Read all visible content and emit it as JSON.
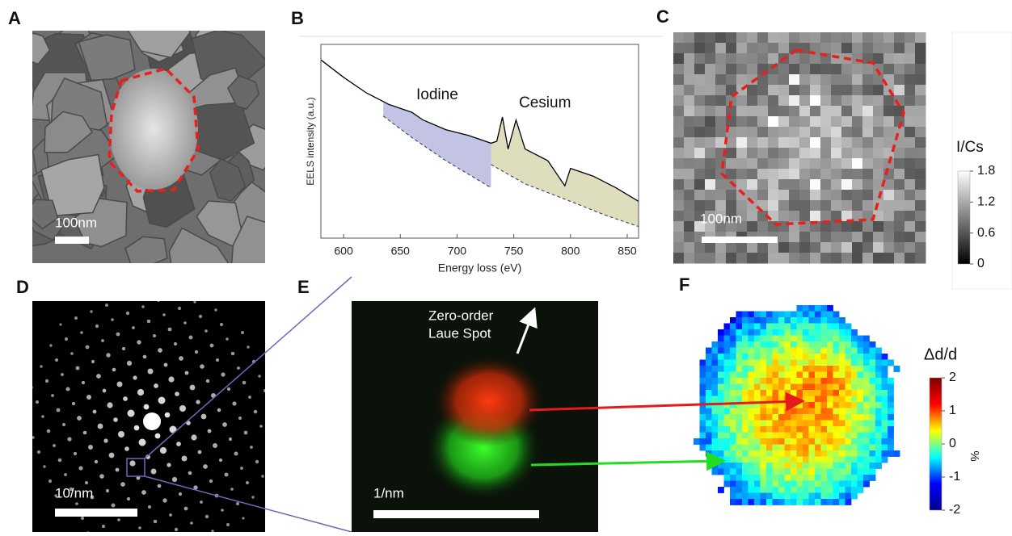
{
  "panels": {
    "A": {
      "label": "A",
      "scale_bar": "100nm"
    },
    "B": {
      "label": "B"
    },
    "C": {
      "label": "C",
      "scale_bar": "100nm",
      "colorbar_label": "I/Cs",
      "colorbar_ticks": [
        0,
        0.6,
        1.2,
        1.8
      ]
    },
    "D": {
      "label": "D",
      "scale_bar": "10/nm"
    },
    "E": {
      "label": "E",
      "annotation": [
        "Zero-order",
        "Laue Spot"
      ],
      "scale_bar": "1/nm"
    },
    "F": {
      "label": "F",
      "colorbar_label": "Δd/d",
      "colorbar_ticks": [
        -2,
        -1,
        0,
        1,
        2
      ],
      "colorbar_unit": "%"
    }
  },
  "chart_data": {
    "type": "line",
    "xlabel": "Energy loss (eV)",
    "ylabel": "EELS intensity (a.u.)",
    "annotations": [
      "Iodine",
      "Cesium"
    ],
    "x": [
      580,
      600,
      620,
      640,
      650,
      660,
      670,
      690,
      710,
      730,
      735,
      740,
      745,
      752,
      760,
      780,
      795,
      800,
      820,
      840,
      860
    ],
    "series": [
      {
        "color": "#000000",
        "values": [
          92,
          83,
          75,
          69,
          67,
          65,
          61,
          56,
          53,
          49,
          50,
          62.5,
          46,
          61,
          46,
          40,
          27,
          36,
          32,
          26,
          19
        ]
      }
    ],
    "background": [
      {
        "color": "#b9b9df",
        "x": [
          635,
          660,
          690,
          710,
          730
        ],
        "values": [
          63,
          52,
          40,
          33,
          26
        ]
      },
      {
        "color": "#d8d8b4",
        "x": [
          730,
          760,
          800,
          830,
          860
        ],
        "values": [
          38,
          28,
          19,
          12,
          6
        ]
      }
    ],
    "xlim": [
      580,
      860
    ],
    "xticks": [
      600,
      650,
      700,
      750,
      800,
      850
    ],
    "ylim": [
      0,
      100
    ]
  }
}
